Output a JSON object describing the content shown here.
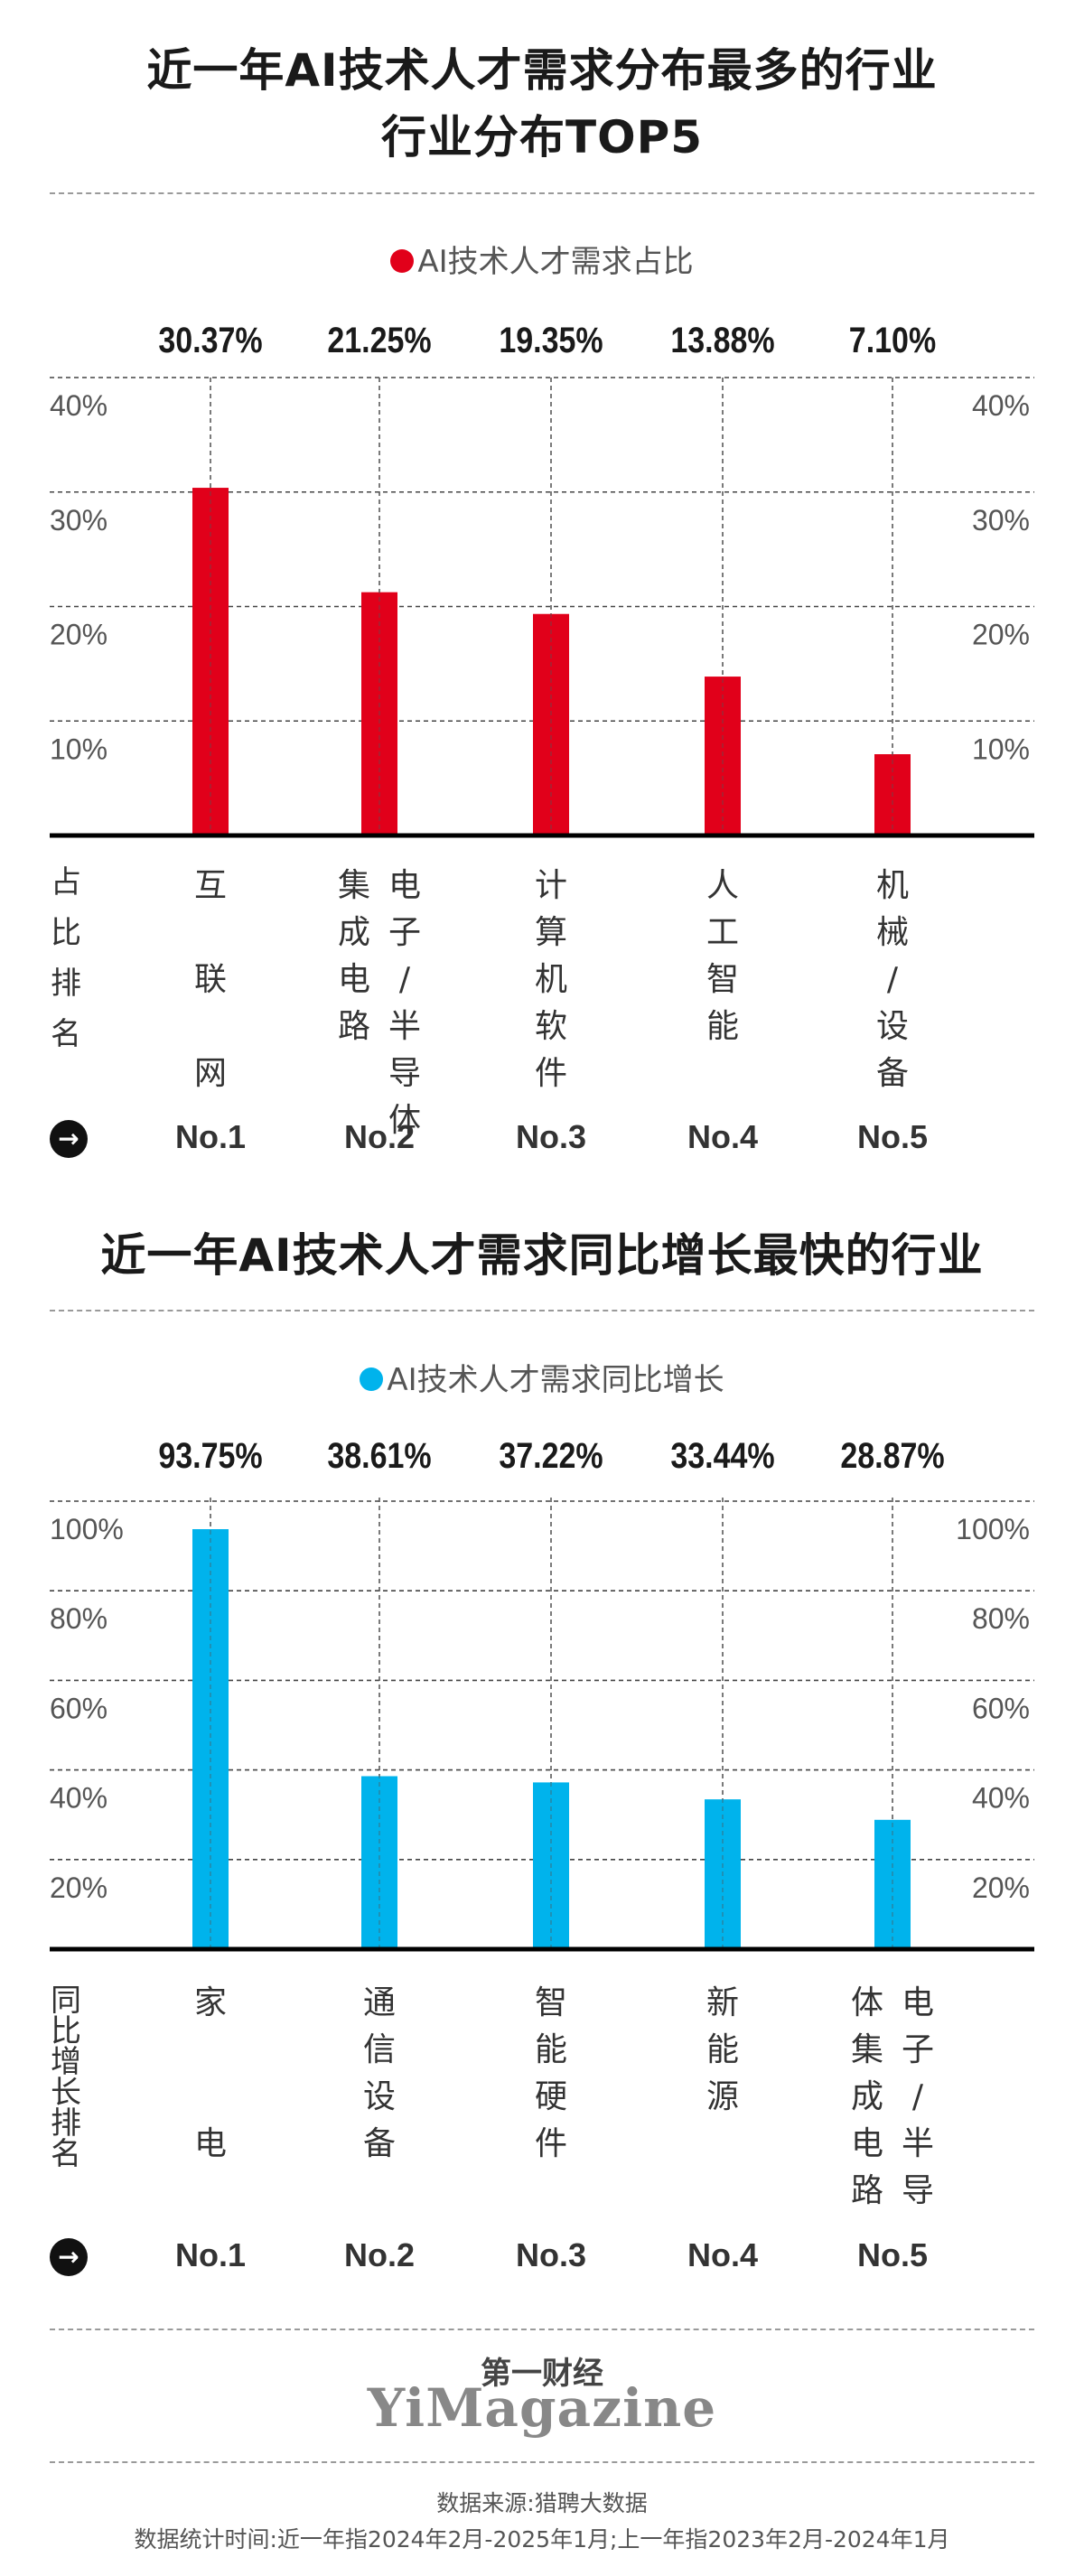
{
  "title1_line1": "近一年AI技术人才需求分布最多的行业",
  "title1_line2": "行业分布TOP5",
  "title2": "近一年AI技术人才需求同比增长最快的行业",
  "chart_data": [
    {
      "type": "bar",
      "legend": "AI技术人才需求占比",
      "color": "#e1001a",
      "categories": [
        "互联网",
        "集成电路电子/半导体",
        "计算机软件",
        "人工智能",
        "机械/设备"
      ],
      "values": [
        30.37,
        21.25,
        19.35,
        13.88,
        7.1
      ],
      "value_labels": [
        "30.37%",
        "21.25%",
        "19.35%",
        "13.88%",
        "7.10%"
      ],
      "ranks": [
        "No.1",
        "No.2",
        "No.3",
        "No.4",
        "No.5"
      ],
      "rank_label": "占比排名",
      "ylim": [
        0,
        40
      ],
      "yticks": [
        10,
        20,
        30,
        40
      ],
      "ytick_labels": [
        "10%",
        "20%",
        "30%",
        "40%"
      ]
    },
    {
      "type": "bar",
      "legend": "AI技术人才需求同比增长",
      "color": "#00b3ec",
      "categories": [
        "家电",
        "通信设备",
        "智能硬件",
        "新能源",
        "体集成电路电子/半导"
      ],
      "values": [
        93.75,
        38.61,
        37.22,
        33.44,
        28.87
      ],
      "value_labels": [
        "93.75%",
        "38.61%",
        "37.22%",
        "33.44%",
        "28.87%"
      ],
      "ranks": [
        "No.1",
        "No.2",
        "No.3",
        "No.4",
        "No.5"
      ],
      "rank_label": "同比增长排名",
      "ylim": [
        0,
        100
      ],
      "yticks": [
        20,
        40,
        60,
        80,
        100
      ],
      "ytick_labels": [
        "20%",
        "40%",
        "60%",
        "80%",
        "100%"
      ]
    }
  ],
  "chart1_cat_columns": [
    [
      [
        "互",
        "",
        "联",
        "",
        "网"
      ]
    ],
    [
      [
        "集",
        "成",
        "电",
        "路"
      ],
      [
        "电",
        "子",
        "/",
        "半",
        "导",
        "体"
      ]
    ],
    [
      [
        "计",
        "算",
        "机",
        "软",
        "件"
      ]
    ],
    [
      [
        "人",
        "工",
        "智",
        "能"
      ]
    ],
    [
      [
        "机",
        "械",
        "/",
        "设",
        "备"
      ]
    ]
  ],
  "chart2_cat_columns": [
    [
      [
        "家",
        "",
        "",
        "电"
      ]
    ],
    [
      [
        "通",
        "信",
        "设",
        "备"
      ]
    ],
    [
      [
        "智",
        "能",
        "硬",
        "件"
      ]
    ],
    [
      [
        "新",
        "能",
        "源"
      ]
    ],
    [
      [
        "体",
        "集",
        "成",
        "电",
        "路"
      ],
      [
        "电",
        "子",
        "/",
        "半",
        "导"
      ]
    ]
  ],
  "brand_cn": "第一财经",
  "brand_en": "YiMagazine",
  "footer_line1": "数据来源:猎聘大数据",
  "footer_line2": "数据统计时间:近一年指2024年2月-2025年1月;上一年指2023年2月-2024年1月",
  "arrow_glyph": "→"
}
